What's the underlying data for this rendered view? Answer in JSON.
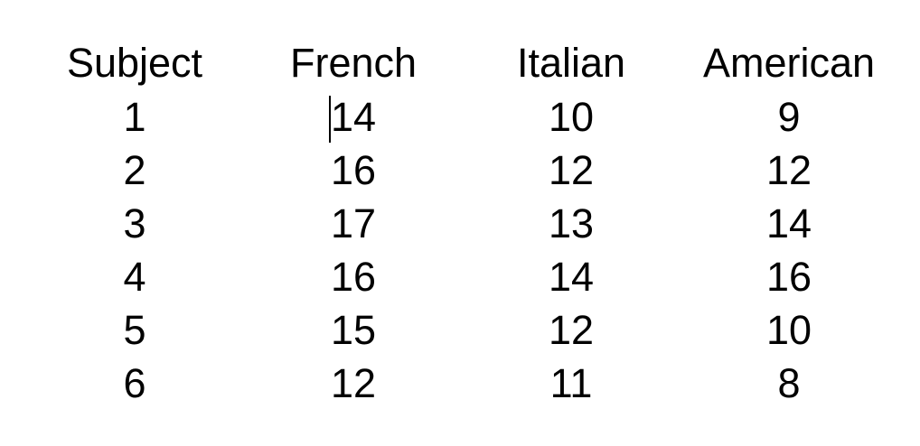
{
  "table": {
    "headers": [
      "Subject",
      "French",
      "Italian",
      "American"
    ],
    "rows": [
      [
        "1",
        "14",
        "10",
        "9"
      ],
      [
        "2",
        "16",
        "12",
        "12"
      ],
      [
        "3",
        "17",
        "13",
        "14"
      ],
      [
        "4",
        "16",
        "14",
        "16"
      ],
      [
        "5",
        "15",
        "12",
        "10"
      ],
      [
        "6",
        "12",
        "11",
        "8"
      ]
    ]
  }
}
